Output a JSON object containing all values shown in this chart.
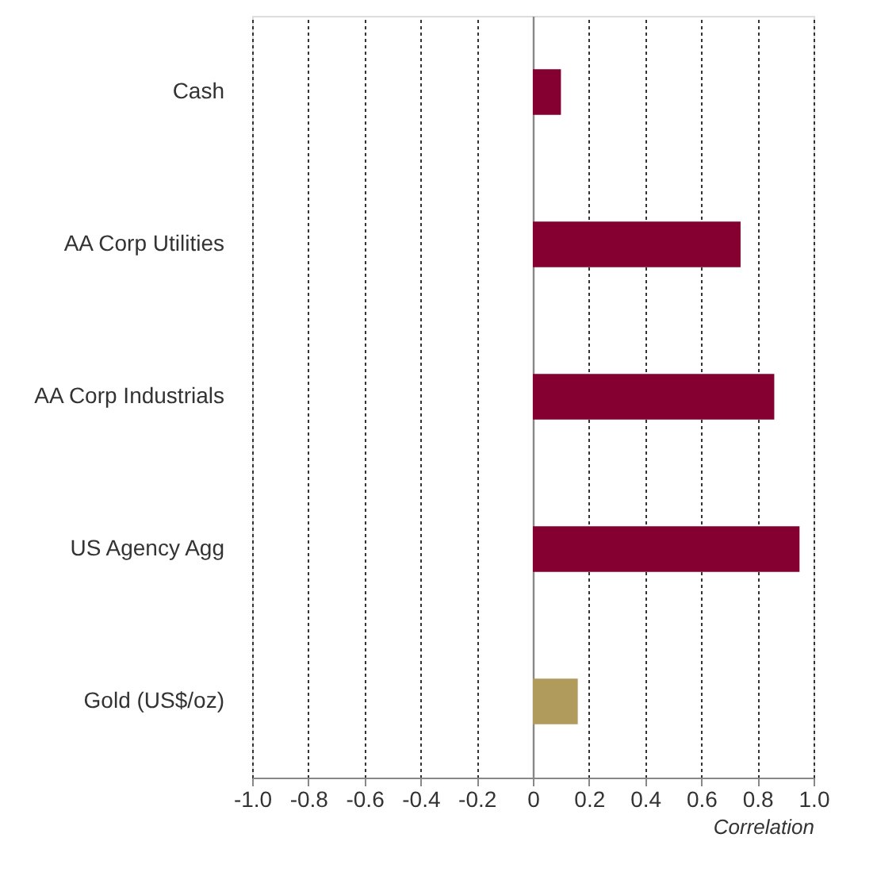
{
  "chart_data": {
    "type": "bar",
    "orientation": "horizontal",
    "xlabel": "Correlation",
    "categories": [
      "Cash",
      "AA Corp Utilities",
      "AA Corp Industrials",
      "US Agency Agg",
      "Gold (US$/oz)"
    ],
    "values": [
      0.1,
      0.74,
      0.86,
      0.95,
      0.16
    ],
    "colors": [
      "#850030",
      "#850030",
      "#850030",
      "#850030",
      "#b09a5c"
    ],
    "xlim": [
      -1.0,
      1.0
    ],
    "xticks": [
      {
        "value": -1.0,
        "label": "-1.0"
      },
      {
        "value": -0.8,
        "label": "-0.8"
      },
      {
        "value": -0.6,
        "label": "-0.6"
      },
      {
        "value": -0.4,
        "label": "-0.4"
      },
      {
        "value": -0.2,
        "label": "-0.2"
      },
      0,
      0.2,
      0.4,
      0.6,
      0.8,
      {
        "value": 1.0,
        "label": "1.0"
      }
    ],
    "grid": "x"
  }
}
